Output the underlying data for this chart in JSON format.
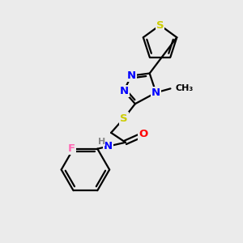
{
  "background_color": "#ebebeb",
  "atom_colors": {
    "N": "#0000ff",
    "S": "#cccc00",
    "O": "#ff0000",
    "F": "#ff69b4",
    "C": "#000000",
    "H": "#888888"
  },
  "bond_color": "#000000",
  "figsize": [
    3.0,
    3.0
  ],
  "dpi": 100
}
